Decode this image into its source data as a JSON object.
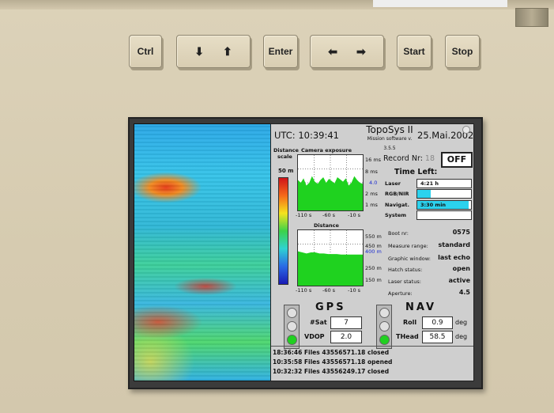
{
  "keys": [
    {
      "label": "Ctrl"
    },
    {
      "glyph_left": "⬇",
      "glyph_right": "⬆"
    },
    {
      "label": "Enter"
    },
    {
      "glyph_left": "⬅",
      "glyph_right": "➡"
    },
    {
      "label": "Start"
    },
    {
      "label": "Stop"
    }
  ],
  "header": {
    "utc": "UTC: 10:39:41",
    "app": "TopoSys II",
    "version": "Mission software v. 3.5.5",
    "date": "25.Mai.2002"
  },
  "scale": {
    "title_1": "Distance",
    "title_2": "scale",
    "value": "50 m"
  },
  "camera": {
    "title": "Camera exposure",
    "y_ticks": [
      "16 ms",
      "8 ms",
      "4.0",
      "2 ms",
      "1 ms"
    ],
    "x_ticks": [
      "-110 s",
      "-60 s",
      "-10 s"
    ],
    "fill_color": "#1fd21f",
    "level": [
      0.55,
      0.5,
      0.58,
      0.45,
      0.5,
      0.62,
      0.52,
      0.48,
      0.55,
      0.6,
      0.5,
      0.57,
      0.53,
      0.49,
      0.6,
      0.56,
      0.52,
      0.58,
      0.45,
      0.5,
      0.62,
      0.55,
      0.5,
      0.48
    ]
  },
  "distance": {
    "title": "Distance",
    "y_ticks": [
      "550 m",
      "450 m",
      "400 m",
      "250 m",
      "150 m"
    ],
    "x_ticks": [
      "-110 s",
      "-60 s",
      "-10 s"
    ],
    "fill_color": "#1fd21f",
    "level": [
      0.62,
      0.6,
      0.58,
      0.6,
      0.6,
      0.58,
      0.58,
      0.57,
      0.57,
      0.57,
      0.56,
      0.56,
      0.56,
      0.56,
      0.56,
      0.56
    ]
  },
  "record": {
    "label": "Record Nr:",
    "value": "18",
    "state": "OFF"
  },
  "time_left": {
    "title": "Time Left:",
    "rows": [
      {
        "label": "Laser",
        "text": "4:21 h",
        "fill": 0.0
      },
      {
        "label": "RGB/NIR",
        "text": "",
        "fill": 0.25
      },
      {
        "label": "Navigat.",
        "text": "3:30 min",
        "fill": 0.95
      },
      {
        "label": "System",
        "text": "",
        "fill": 0.0
      }
    ]
  },
  "info": [
    {
      "label": "Boot nr:",
      "value": "0575"
    },
    {
      "label": "Measure range:",
      "value": "standard"
    },
    {
      "label": "Graphic window:",
      "value": "last echo"
    },
    {
      "label": "Hatch status:",
      "value": "open"
    },
    {
      "label": "Laser status:",
      "value": "active"
    },
    {
      "label": "Aperture:",
      "value": "4.5"
    }
  ],
  "gps": {
    "title": "GPS",
    "sat_label": "#Sat",
    "sat_value": "7",
    "vdop_label": "VDOP",
    "vdop_value": "2.0"
  },
  "nav": {
    "title": "NAV",
    "roll_label": "Roll",
    "roll_value": "0.9",
    "roll_unit": "deg",
    "head_label": "THead",
    "head_value": "58.5",
    "head_unit": "deg"
  },
  "log": [
    "18:36:46  Files 43556571.18  closed",
    "10:35:58  Files 43556571.18  opened",
    "10:32:32  Files 43556249.17  closed"
  ]
}
